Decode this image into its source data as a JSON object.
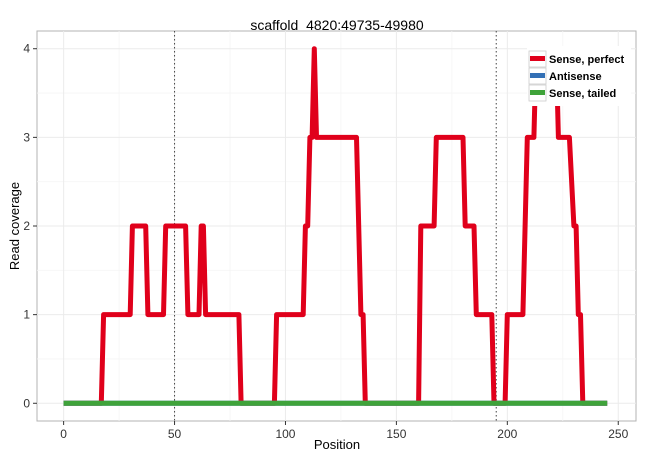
{
  "chart_data": {
    "type": "line",
    "title": "scaffold_4820:49735-49980",
    "xlabel": "Position",
    "ylabel": "Read coverage",
    "xlim": [
      -12,
      258
    ],
    "ylim": [
      -0.2,
      4.2
    ],
    "xticks": [
      0,
      50,
      100,
      150,
      200,
      250
    ],
    "yticks": [
      0,
      1,
      2,
      3,
      4
    ],
    "grid": true,
    "legend_position": "top-right",
    "vlines": [
      50,
      195
    ],
    "colors": {
      "Sense, perfect": "#e0001b",
      "Antisense": "#3370b5",
      "Sense, tailed": "#3fa33a"
    },
    "series": [
      {
        "name": "Sense, perfect",
        "points": [
          [
            0,
            0
          ],
          [
            17,
            0
          ],
          [
            18,
            1
          ],
          [
            30,
            1
          ],
          [
            31,
            2
          ],
          [
            37,
            2
          ],
          [
            38,
            1
          ],
          [
            45,
            1
          ],
          [
            46,
            2
          ],
          [
            55,
            2
          ],
          [
            56,
            1
          ],
          [
            61,
            1
          ],
          [
            62,
            2
          ],
          [
            63,
            2
          ],
          [
            64,
            1
          ],
          [
            79,
            1
          ],
          [
            80,
            0
          ],
          [
            95,
            0
          ],
          [
            96,
            1
          ],
          [
            108,
            1
          ],
          [
            109,
            2
          ],
          [
            110,
            2
          ],
          [
            111,
            3
          ],
          [
            112,
            3
          ],
          [
            113,
            4
          ],
          [
            114,
            3
          ],
          [
            132,
            3
          ],
          [
            134,
            1
          ],
          [
            135,
            1
          ],
          [
            136,
            0
          ],
          [
            160,
            0
          ],
          [
            161,
            2
          ],
          [
            167,
            2
          ],
          [
            168,
            3
          ],
          [
            180,
            3
          ],
          [
            181,
            2
          ],
          [
            185,
            2
          ],
          [
            186,
            1
          ],
          [
            193,
            1
          ],
          [
            194,
            0
          ],
          [
            199,
            0
          ],
          [
            200,
            1
          ],
          [
            207,
            1
          ],
          [
            209,
            3
          ],
          [
            212,
            3
          ],
          [
            213,
            4
          ],
          [
            222,
            4
          ],
          [
            223,
            3
          ],
          [
            228,
            3
          ],
          [
            230,
            2
          ],
          [
            231,
            2
          ],
          [
            232,
            1
          ],
          [
            233,
            1
          ],
          [
            234,
            0
          ],
          [
            245,
            0
          ]
        ]
      },
      {
        "name": "Antisense",
        "points": [
          [
            0,
            0
          ],
          [
            245,
            0
          ]
        ]
      },
      {
        "name": "Sense, tailed",
        "points": [
          [
            0,
            0
          ],
          [
            245,
            0
          ]
        ]
      }
    ]
  }
}
